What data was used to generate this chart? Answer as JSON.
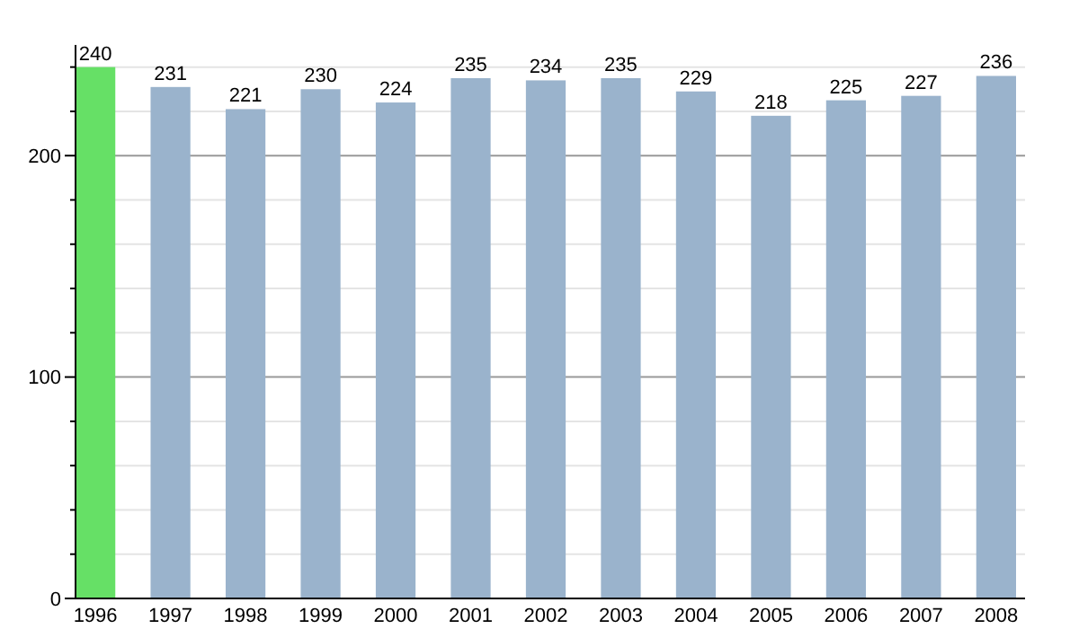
{
  "chart_data": {
    "type": "bar",
    "categories": [
      "1996",
      "1997",
      "1998",
      "1999",
      "2000",
      "2001",
      "2002",
      "2003",
      "2004",
      "2005",
      "2006",
      "2007",
      "2008"
    ],
    "values": [
      240,
      231,
      221,
      230,
      224,
      235,
      234,
      235,
      229,
      218,
      225,
      227,
      236
    ],
    "colors": [
      "#66e066",
      "#9ab3cc",
      "#9ab3cc",
      "#9ab3cc",
      "#9ab3cc",
      "#9ab3cc",
      "#9ab3cc",
      "#9ab3cc",
      "#9ab3cc",
      "#9ab3cc",
      "#9ab3cc",
      "#9ab3cc",
      "#9ab3cc"
    ],
    "ylim": [
      0,
      250
    ],
    "yticks": [
      0,
      {
        "value": 20,
        "label": null
      },
      {
        "value": 40,
        "label": null
      },
      {
        "value": 60,
        "label": null
      },
      {
        "value": 80,
        "label": null
      },
      100,
      {
        "value": 120,
        "label": null
      },
      {
        "value": 140,
        "label": null
      },
      {
        "value": 160,
        "label": null
      },
      {
        "value": 180,
        "label": null
      },
      200,
      {
        "value": 220,
        "label": null
      },
      {
        "value": 240,
        "label": null
      }
    ],
    "grid": "y",
    "data_labels": true
  }
}
